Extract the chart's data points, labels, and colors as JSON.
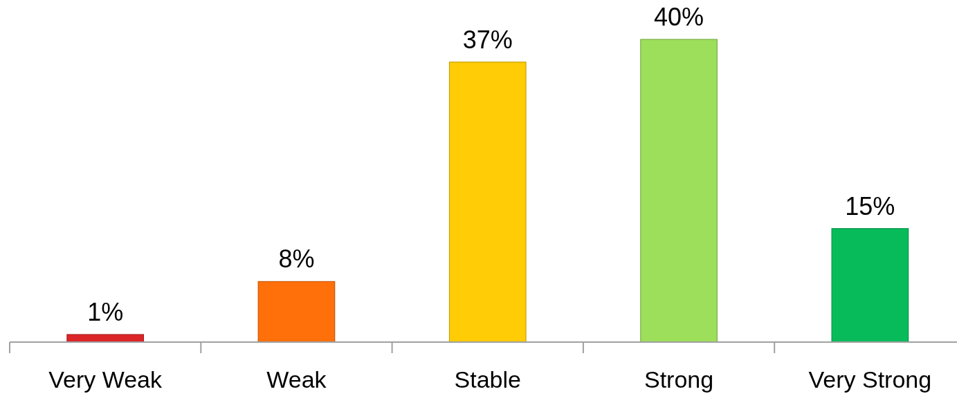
{
  "chart_data": {
    "type": "bar",
    "categories": [
      "Very Weak",
      "Weak",
      "Stable",
      "Strong",
      "Very Strong"
    ],
    "values": [
      1,
      8,
      37,
      40,
      15
    ],
    "value_labels": [
      "1%",
      "8%",
      "37%",
      "40%",
      "15%"
    ],
    "colors": [
      "#dc2528",
      "#ff700a",
      "#ffcc05",
      "#9ddf5a",
      "#07bb5b"
    ]
  }
}
